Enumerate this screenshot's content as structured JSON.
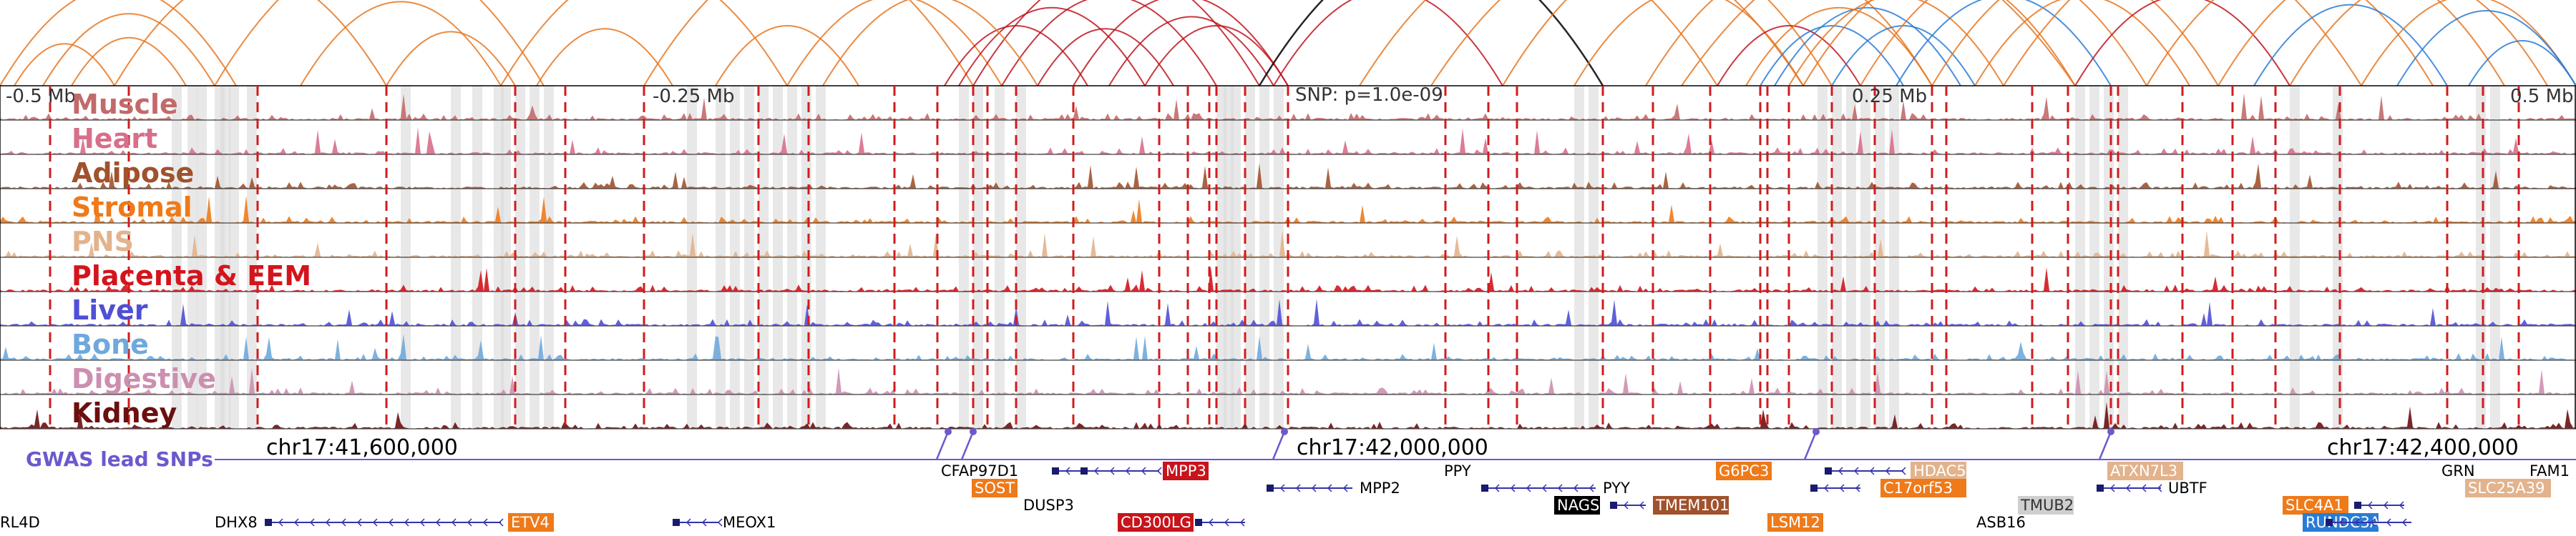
{
  "colors": {
    "arc_orange": "#e8761e",
    "arc_red": "#c0141e",
    "arc_black": "#000000",
    "arc_blue": "#2a7bd5",
    "gwas": "#6a5acd",
    "peak_line": "#d01c1c",
    "highlight": "#d9d9d9"
  },
  "axis": {
    "mb_labels": [
      {
        "label": "-0.5 Mb",
        "pos": -0.5
      },
      {
        "label": "-0.25 Mb",
        "pos": -0.25
      },
      {
        "label": "0.25 Mb",
        "pos": 0.25
      },
      {
        "label": "0.5 Mb",
        "pos": 0.5
      }
    ],
    "snp_label": "SNP: p=1.0e-09",
    "coords": [
      {
        "label": "chr17:41,600,000",
        "pos": 41600000
      },
      {
        "label": "chr17:42,000,000",
        "pos": 42000000
      },
      {
        "label": "chr17:42,400,000",
        "pos": 42400000
      }
    ]
  },
  "tracks": [
    {
      "name": "Muscle",
      "color": "#c26a6a",
      "seed": 3
    },
    {
      "name": "Heart",
      "color": "#d86f8a",
      "seed": 7
    },
    {
      "name": "Adipose",
      "color": "#a0522d",
      "seed": 11
    },
    {
      "name": "Stromal",
      "color": "#ee7a1a",
      "seed": 13
    },
    {
      "name": "PNS",
      "color": "#e2b38c",
      "seed": 17
    },
    {
      "name": "Placenta & EEM",
      "color": "#d4141c",
      "seed": 19
    },
    {
      "name": "Liver",
      "color": "#4f4fd6",
      "seed": 23
    },
    {
      "name": "Bone",
      "color": "#6fa8dc",
      "seed": 29
    },
    {
      "name": "Digestive",
      "color": "#cc8fb0",
      "seed": 31
    },
    {
      "name": "Kidney",
      "color": "#6b0f0f",
      "seed": 37
    }
  ],
  "gwas_label": "GWAS lead SNPs",
  "genes": [
    {
      "name": "CFAP97D1",
      "style": "text"
    },
    {
      "name": "MPP3",
      "style": "box",
      "bg": "#c8141c"
    },
    {
      "name": "PPY",
      "style": "text"
    },
    {
      "name": "G6PC3",
      "style": "box",
      "bg": "#ee7a1a"
    },
    {
      "name": "HDAC5",
      "style": "box",
      "bg": "#e2b38c"
    },
    {
      "name": "ATXN7L3",
      "style": "box",
      "bg": "#e2b38c"
    },
    {
      "name": "GRN",
      "style": "text"
    },
    {
      "name": "FAM1",
      "style": "text"
    },
    {
      "name": "SOST",
      "style": "box",
      "bg": "#ee7a1a"
    },
    {
      "name": "MPP2",
      "style": "text"
    },
    {
      "name": "PYY",
      "style": "text"
    },
    {
      "name": "C17orf53",
      "style": "box",
      "bg": "#ee7a1a"
    },
    {
      "name": "UBTF",
      "style": "text"
    },
    {
      "name": "SLC25A39",
      "style": "box",
      "bg": "#e2b38c"
    },
    {
      "name": "DUSP3",
      "style": "text"
    },
    {
      "name": "NAGS",
      "style": "box",
      "bg": "#000000"
    },
    {
      "name": "TMEM101",
      "style": "box",
      "bg": "#a0522d"
    },
    {
      "name": "TMUB2",
      "style": "box",
      "bg": "#cfcfcf"
    },
    {
      "name": "SLC4A1",
      "style": "box",
      "bg": "#ee7a1a"
    },
    {
      "name": "RL4D",
      "style": "text"
    },
    {
      "name": "DHX8",
      "style": "text"
    },
    {
      "name": "ETV4",
      "style": "box",
      "bg": "#ee7a1a"
    },
    {
      "name": "MEOX1",
      "style": "text"
    },
    {
      "name": "CD300LG",
      "style": "box",
      "bg": "#c8141c"
    },
    {
      "name": "LSM12",
      "style": "box",
      "bg": "#ee7a1a"
    },
    {
      "name": "ASB16",
      "style": "text"
    },
    {
      "name": "RUNDC3A",
      "style": "box",
      "bg": "#2a7bd5"
    }
  ]
}
